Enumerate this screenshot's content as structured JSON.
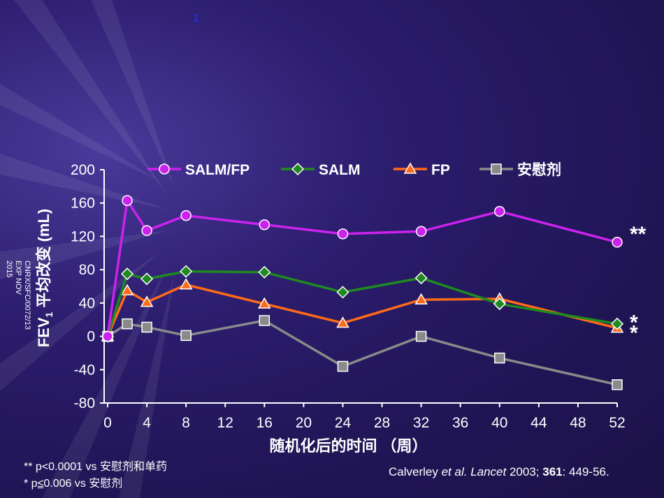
{
  "page_number": "1",
  "side_code": {
    "line1": "CNRX/SFC/0072/13",
    "line2": "EXP NOV 2015"
  },
  "footnotes": {
    "line1": "** p<0.0001 vs  安慰剂和单药",
    "line2_prefix": "* p",
    "line2_le": "≤",
    "line2_rest": "0.006 vs  安慰剂"
  },
  "citation": {
    "authors": "Calverley ",
    "etal": "et al.",
    "journal": "Lancet",
    "year": " 2003; ",
    "volume": "361",
    "pages": ": 449-56."
  },
  "chart_data": {
    "type": "line",
    "xlabel": "随机化后的时间 （周）",
    "ylabel": "FEV",
    "ylabel_sub": "1",
    "ylabel_rest": " 平均改变 (mL)",
    "xlim": [
      0,
      52
    ],
    "ylim": [
      -80,
      200
    ],
    "x_ticks": [
      0,
      4,
      8,
      12,
      16,
      20,
      24,
      28,
      32,
      36,
      40,
      44,
      48,
      52
    ],
    "y_ticks": [
      200,
      160,
      120,
      80,
      40,
      0,
      -40,
      -80
    ],
    "grid": false,
    "legend_position": "top",
    "series": [
      {
        "name": "SALM/FP",
        "color": "#cc22ee",
        "marker": "circle",
        "x": [
          0,
          2,
          4,
          8,
          16,
          24,
          32,
          40,
          52
        ],
        "values": [
          0,
          163,
          127,
          145,
          134,
          123,
          126,
          150,
          113
        ],
        "annotation": "**"
      },
      {
        "name": "SALM",
        "color": "#1f8a1f",
        "marker": "diamond",
        "x": [
          0,
          2,
          4,
          8,
          16,
          24,
          32,
          40,
          52
        ],
        "values": [
          0,
          75,
          69,
          78,
          77,
          53,
          70,
          39,
          15
        ],
        "annotation": "*"
      },
      {
        "name": "FP",
        "color": "#ff6a1a",
        "marker": "triangle",
        "x": [
          0,
          2,
          4,
          8,
          16,
          24,
          32,
          40,
          52
        ],
        "values": [
          0,
          55,
          41,
          62,
          39,
          16,
          44,
          45,
          10
        ],
        "annotation": "*"
      },
      {
        "name": "安慰剂",
        "color": "#8a8a8a",
        "marker": "square",
        "x": [
          0,
          2,
          4,
          8,
          16,
          24,
          32,
          40,
          52
        ],
        "values": [
          0,
          15,
          11,
          1,
          19,
          -36,
          0,
          -26,
          -58
        ],
        "annotation": ""
      }
    ]
  }
}
